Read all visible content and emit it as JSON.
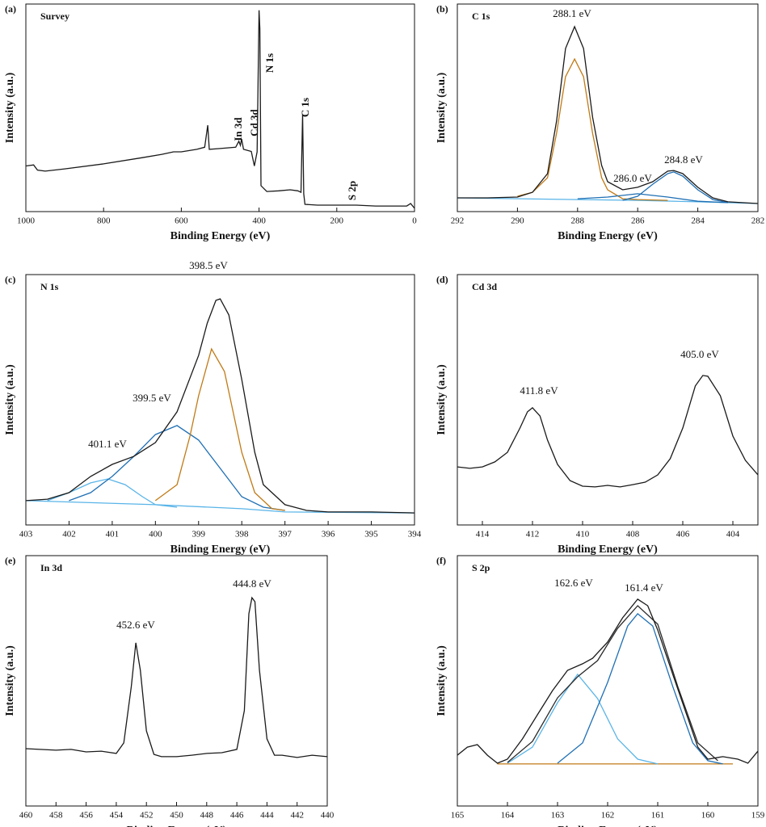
{
  "chart_data": [
    {
      "type": "line",
      "panel_label": "(a)",
      "title": "Survey",
      "x_label": "Binding Energy (eV)",
      "y_label": "Intensity (a.u.)",
      "xlim": [
        1000,
        0
      ],
      "xticks": [
        1000,
        800,
        600,
        400,
        200,
        0
      ],
      "ylim": [
        0,
        100
      ],
      "peak_labels": [
        "In 3d",
        "Cd 3d",
        "N 1s",
        "C 1s",
        "S 2p"
      ],
      "series": [
        {
          "color": "#1a1a1a",
          "x": [
            1000,
            980,
            970,
            950,
            900,
            800,
            700,
            650,
            620,
            600,
            560,
            540,
            532,
            528,
            500,
            460,
            452,
            448,
            445,
            440,
            420,
            412,
            405,
            400,
            398,
            395,
            380,
            350,
            320,
            300,
            292,
            288,
            285,
            282,
            250,
            200,
            150,
            100,
            50,
            20,
            10,
            0
          ],
          "values": [
            22,
            22.5,
            20,
            19.5,
            20.6,
            23,
            26,
            27.6,
            28.8,
            28.8,
            30,
            31,
            41.6,
            30,
            30.4,
            31,
            33.9,
            31.9,
            35,
            30,
            29,
            22,
            28.8,
            97,
            88,
            12.5,
            9.7,
            10,
            10.5,
            10,
            9.3,
            46.7,
            8.6,
            3.5,
            3.1,
            3.1,
            3.1,
            2.7,
            2.7,
            2.7,
            3.9,
            1.6
          ]
        }
      ]
    },
    {
      "type": "line",
      "panel_label": "(b)",
      "title": "C 1s",
      "x_label": "Binding Energy (eV)",
      "y_label": "Intensity (a.u.)",
      "xlim": [
        292,
        282
      ],
      "xticks": [
        292,
        290,
        288,
        286,
        284,
        282
      ],
      "ylim": [
        0,
        100
      ],
      "peak_labels": [
        "288.1 eV",
        "286.0 eV",
        "284.8 eV"
      ],
      "series": [
        {
          "color": "#59b4e8",
          "x": [
            292,
            288,
            286,
            284,
            282
          ],
          "values": [
            6.6,
            5.8,
            5.4,
            4.7,
            3.9
          ]
        },
        {
          "color": "#c07a16",
          "x": [
            290,
            289.5,
            289,
            288.7,
            288.4,
            288.1,
            287.8,
            287.5,
            287.2,
            287,
            286.5,
            286,
            285
          ],
          "values": [
            7.4,
            9.3,
            16.3,
            37.7,
            65,
            73.5,
            65,
            37.7,
            16.3,
            10.5,
            6.2,
            5.8,
            5.4
          ]
        },
        {
          "color": "#1f6fb4",
          "x": [
            288,
            287,
            286,
            285,
            284,
            283
          ],
          "values": [
            6.2,
            7,
            8.6,
            7,
            5,
            4.3
          ]
        },
        {
          "color": "#1f6fb4",
          "x": [
            286.5,
            286,
            285.5,
            285,
            284.8,
            284.5,
            284,
            283.5,
            283
          ],
          "values": [
            5.4,
            7.4,
            13.2,
            18.3,
            19.1,
            17.1,
            10.5,
            5.8,
            4.3
          ]
        },
        {
          "color": "#1a1a1a",
          "x": [
            292,
            291,
            290,
            289.5,
            289,
            288.7,
            288.4,
            288.1,
            287.8,
            287.5,
            287.2,
            287,
            286.5,
            286,
            285.5,
            285,
            284.8,
            284.5,
            284,
            283.5,
            283,
            282
          ],
          "values": [
            6.6,
            6.6,
            7,
            9.3,
            18.3,
            43.6,
            78.6,
            89.1,
            78.6,
            45.5,
            22.2,
            14.4,
            10.5,
            11.7,
            14.4,
            19.5,
            19.8,
            18.3,
            11.7,
            6.6,
            4.7,
            3.9
          ]
        }
      ]
    },
    {
      "type": "line",
      "panel_label": "(c)",
      "title": "N 1s",
      "x_label": "Binding Energy (eV)",
      "y_label": "Intensity (a.u.)",
      "xlim": [
        403,
        394
      ],
      "xticks": [
        403,
        402,
        401,
        400,
        399,
        398,
        397,
        396,
        395,
        394
      ],
      "ylim": [
        0,
        100
      ],
      "peak_labels": [
        "398.5 eV",
        "399.5 eV",
        "401.1 eV"
      ],
      "series": [
        {
          "color": "#59b4e8",
          "x": [
            403,
            400,
            398,
            397,
            394
          ],
          "values": [
            9.7,
            8.1,
            6.5,
            5.2,
            4.8
          ]
        },
        {
          "color": "#59b4e8",
          "x": [
            402.5,
            402,
            401.5,
            401.1,
            400.7,
            400.3,
            400,
            399.5
          ],
          "values": [
            9.7,
            12.9,
            16.8,
            18.4,
            16.1,
            11.3,
            8.1,
            7.1
          ]
        },
        {
          "color": "#1f6fb4",
          "x": [
            402,
            401.5,
            401,
            400.5,
            400,
            399.5,
            399,
            398.5,
            398,
            397.5,
            397
          ],
          "values": [
            9.7,
            12.9,
            19.4,
            27.4,
            36.1,
            39.7,
            33.9,
            22.6,
            11.3,
            7.1,
            5.8
          ]
        },
        {
          "color": "#c07a16",
          "x": [
            400,
            399.5,
            399.2,
            399,
            398.7,
            398.4,
            398,
            397.7,
            397.3,
            397
          ],
          "values": [
            9.7,
            16.1,
            35.5,
            51.6,
            70.3,
            61.3,
            29,
            12.9,
            6.5,
            5.8
          ]
        },
        {
          "color": "#1a1a1a",
          "x": [
            403,
            402.5,
            402,
            401.5,
            401,
            400.5,
            400,
            399.5,
            399,
            398.8,
            398.6,
            398.5,
            398.3,
            398,
            397.7,
            397.5,
            397,
            396.5,
            396,
            395,
            394
          ],
          "values": [
            9.7,
            10.3,
            12.9,
            19.4,
            24.2,
            27.4,
            32.9,
            45.2,
            67.7,
            80.6,
            89.7,
            90.3,
            83.9,
            58.1,
            29,
            16.1,
            8.1,
            5.8,
            5.2,
            5.2,
            4.8
          ]
        }
      ]
    },
    {
      "type": "line",
      "panel_label": "(d)",
      "title": "Cd 3d",
      "x_label": "Binding Energy (eV)",
      "y_label": "Intensity (a.u.)",
      "xlim": [
        415,
        403
      ],
      "xticks": [
        414,
        412,
        410,
        408,
        406,
        404
      ],
      "ylim": [
        0,
        100
      ],
      "peak_labels": [
        "411.8 eV",
        "405.0 eV"
      ],
      "series": [
        {
          "color": "#1a1a1a",
          "x": [
            415,
            414.5,
            414,
            413.5,
            413,
            412.5,
            412.2,
            412,
            411.7,
            411.4,
            411,
            410.5,
            410,
            409.5,
            409,
            408.5,
            408,
            407.5,
            407,
            406.5,
            406,
            405.5,
            405.2,
            405,
            404.5,
            404,
            403.5,
            403
          ],
          "values": [
            23.2,
            22.6,
            23.2,
            25.2,
            29,
            38.7,
            45.2,
            46.8,
            43.5,
            33.9,
            24.2,
            17.7,
            15.5,
            15.2,
            15.8,
            15.2,
            16.1,
            17.1,
            20,
            26.5,
            38.7,
            55.5,
            59.7,
            59.4,
            51.6,
            35.5,
            25.8,
            20
          ]
        }
      ]
    },
    {
      "type": "line",
      "panel_label": "(e)",
      "title": "In 3d",
      "x_label": "Binding Energy (eV)",
      "y_label": "Intensity (a.u.)",
      "xlim": [
        460,
        440
      ],
      "xticks": [
        460,
        458,
        456,
        454,
        452,
        450,
        448,
        446,
        444,
        442,
        440
      ],
      "ylim": [
        0,
        100
      ],
      "peak_labels": [
        "452.6 eV",
        "444.8 eV"
      ],
      "series": [
        {
          "color": "#1a1a1a",
          "x": [
            460,
            458,
            457,
            456,
            455,
            454,
            453.5,
            453,
            452.7,
            452.4,
            452,
            451.5,
            451,
            450,
            449,
            448,
            447,
            446,
            445.5,
            445.2,
            445,
            444.8,
            444.5,
            444,
            443.5,
            443,
            442,
            441,
            440
          ],
          "values": [
            22.9,
            22.3,
            22.6,
            21.6,
            21.9,
            21,
            25.2,
            47.7,
            65.2,
            54.2,
            30,
            20.6,
            19.7,
            19.7,
            20.3,
            21,
            21.3,
            22.6,
            38.1,
            76.8,
            83.2,
            81.6,
            54.2,
            26.8,
            20.3,
            20.3,
            19.4,
            20.3,
            19.7
          ]
        }
      ]
    },
    {
      "type": "line",
      "panel_label": "(f)",
      "title": "S 2p",
      "x_label": "Binding Energy (eV)",
      "y_label": "Intensity (a.u.)",
      "xlim": [
        165,
        159
      ],
      "xticks": [
        165,
        164,
        163,
        162,
        161,
        160,
        159
      ],
      "ylim": [
        0,
        100
      ],
      "peak_labels": [
        "162.6 eV",
        "161.4 eV"
      ],
      "series": [
        {
          "color": "#c07a16",
          "x": [
            164.2,
            159.5
          ],
          "values": [
            16.8,
            16.8
          ]
        },
        {
          "color": "#59b4e8",
          "x": [
            164,
            163.5,
            163,
            162.6,
            162.2,
            161.8,
            161.4,
            161
          ],
          "values": [
            17.1,
            23.5,
            41.3,
            52.6,
            42.9,
            26.8,
            18.7,
            16.8
          ]
        },
        {
          "color": "#1f6fb4",
          "x": [
            163,
            162.5,
            162,
            161.6,
            161.4,
            161.1,
            160.7,
            160.3,
            160,
            159.7
          ],
          "values": [
            17.1,
            25.2,
            49.4,
            71.9,
            76.8,
            71.9,
            47.7,
            25.2,
            18.1,
            16.8
          ]
        },
        {
          "color": "#2a2a2a",
          "x": [
            164,
            163.5,
            163,
            162.6,
            162.2,
            161.8,
            161.4,
            161,
            160.6,
            160.2,
            159.8
          ],
          "values": [
            17.4,
            25.8,
            43.2,
            51.6,
            58.1,
            71,
            80,
            72.6,
            47.7,
            25.2,
            18.1
          ]
        },
        {
          "color": "#1a1a1a",
          "x": [
            165,
            164.8,
            164.6,
            164.4,
            164.2,
            164,
            163.7,
            163.4,
            163.1,
            162.8,
            162.5,
            162.3,
            162,
            161.7,
            161.4,
            161.2,
            161,
            160.7,
            160.4,
            160.2,
            160,
            159.7,
            159.4,
            159.2,
            159
          ],
          "values": [
            20.3,
            23.5,
            24.5,
            20.3,
            17.1,
            18.7,
            26.8,
            36.5,
            46.1,
            54.2,
            56.8,
            59,
            65.5,
            75.2,
            82.6,
            80,
            70.3,
            52.6,
            35.2,
            23.5,
            18.7,
            19.7,
            18.7,
            17.1,
            21.9
          ]
        }
      ]
    }
  ]
}
